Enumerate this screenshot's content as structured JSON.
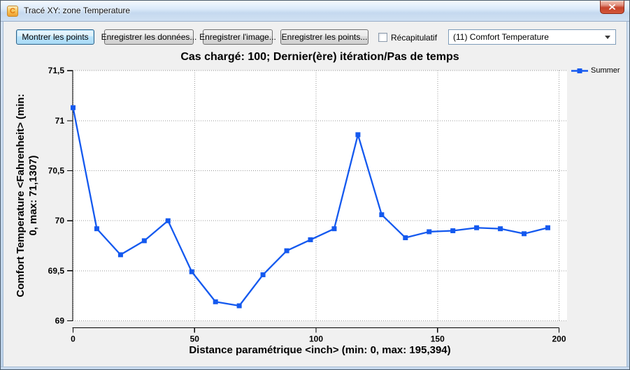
{
  "window": {
    "title": "Tracé XY: zone Temperature"
  },
  "icons": {
    "app_glyph": "C"
  },
  "toolbar": {
    "buttons": [
      {
        "label": "Montrer les points"
      },
      {
        "label": "Enregistrer les données..."
      },
      {
        "label": "Enregistrer l'image..."
      },
      {
        "label": "Enregistrer les points..."
      }
    ],
    "checkbox_label": "Récapitulatif",
    "checkbox_checked": false,
    "dropdown_value": "(11) Comfort Temperature"
  },
  "chart_data": {
    "type": "line",
    "title": "Cas chargé: 100; Dernier(ère) itération/Pas de temps",
    "xlabel": "Distance paramétrique <inch> (min: 0, max: 195,394)",
    "ylabel": "Comfort Temperature <Fahrenheit> (min: 0, max: 71,1307)",
    "ylabel_lines": {
      "0": "Comfort Temperature <Fahrenheit> (min:",
      "1": "0, max: 71,1307)"
    },
    "xlim": [
      0,
      200
    ],
    "ylim": [
      69,
      71.5
    ],
    "xticks": {
      "values": [
        0,
        50,
        100,
        150,
        200
      ],
      "labels": [
        "0",
        "50",
        "100",
        "150",
        "200"
      ]
    },
    "yticks": {
      "values": [
        69,
        69.5,
        70,
        70.5,
        71,
        71.5
      ],
      "labels": [
        "69",
        "69,5",
        "70",
        "70,5",
        "71",
        "71,5"
      ]
    },
    "grid": true,
    "legend_position": "top-right-external",
    "series": [
      {
        "name": "Summer",
        "color": "#1459ef",
        "marker": "square",
        "x": [
          0,
          9.77,
          19.54,
          29.31,
          39.08,
          48.85,
          58.62,
          68.39,
          78.16,
          87.93,
          97.7,
          107.47,
          117.24,
          127.01,
          136.78,
          146.55,
          156.32,
          166.08,
          175.85,
          185.62,
          195.39
        ],
        "y": [
          71.13,
          69.92,
          69.66,
          69.8,
          70.0,
          69.49,
          69.19,
          69.15,
          69.46,
          69.7,
          69.81,
          69.92,
          70.86,
          70.06,
          69.83,
          69.89,
          69.9,
          69.93,
          69.92,
          69.87,
          69.93
        ]
      }
    ]
  }
}
